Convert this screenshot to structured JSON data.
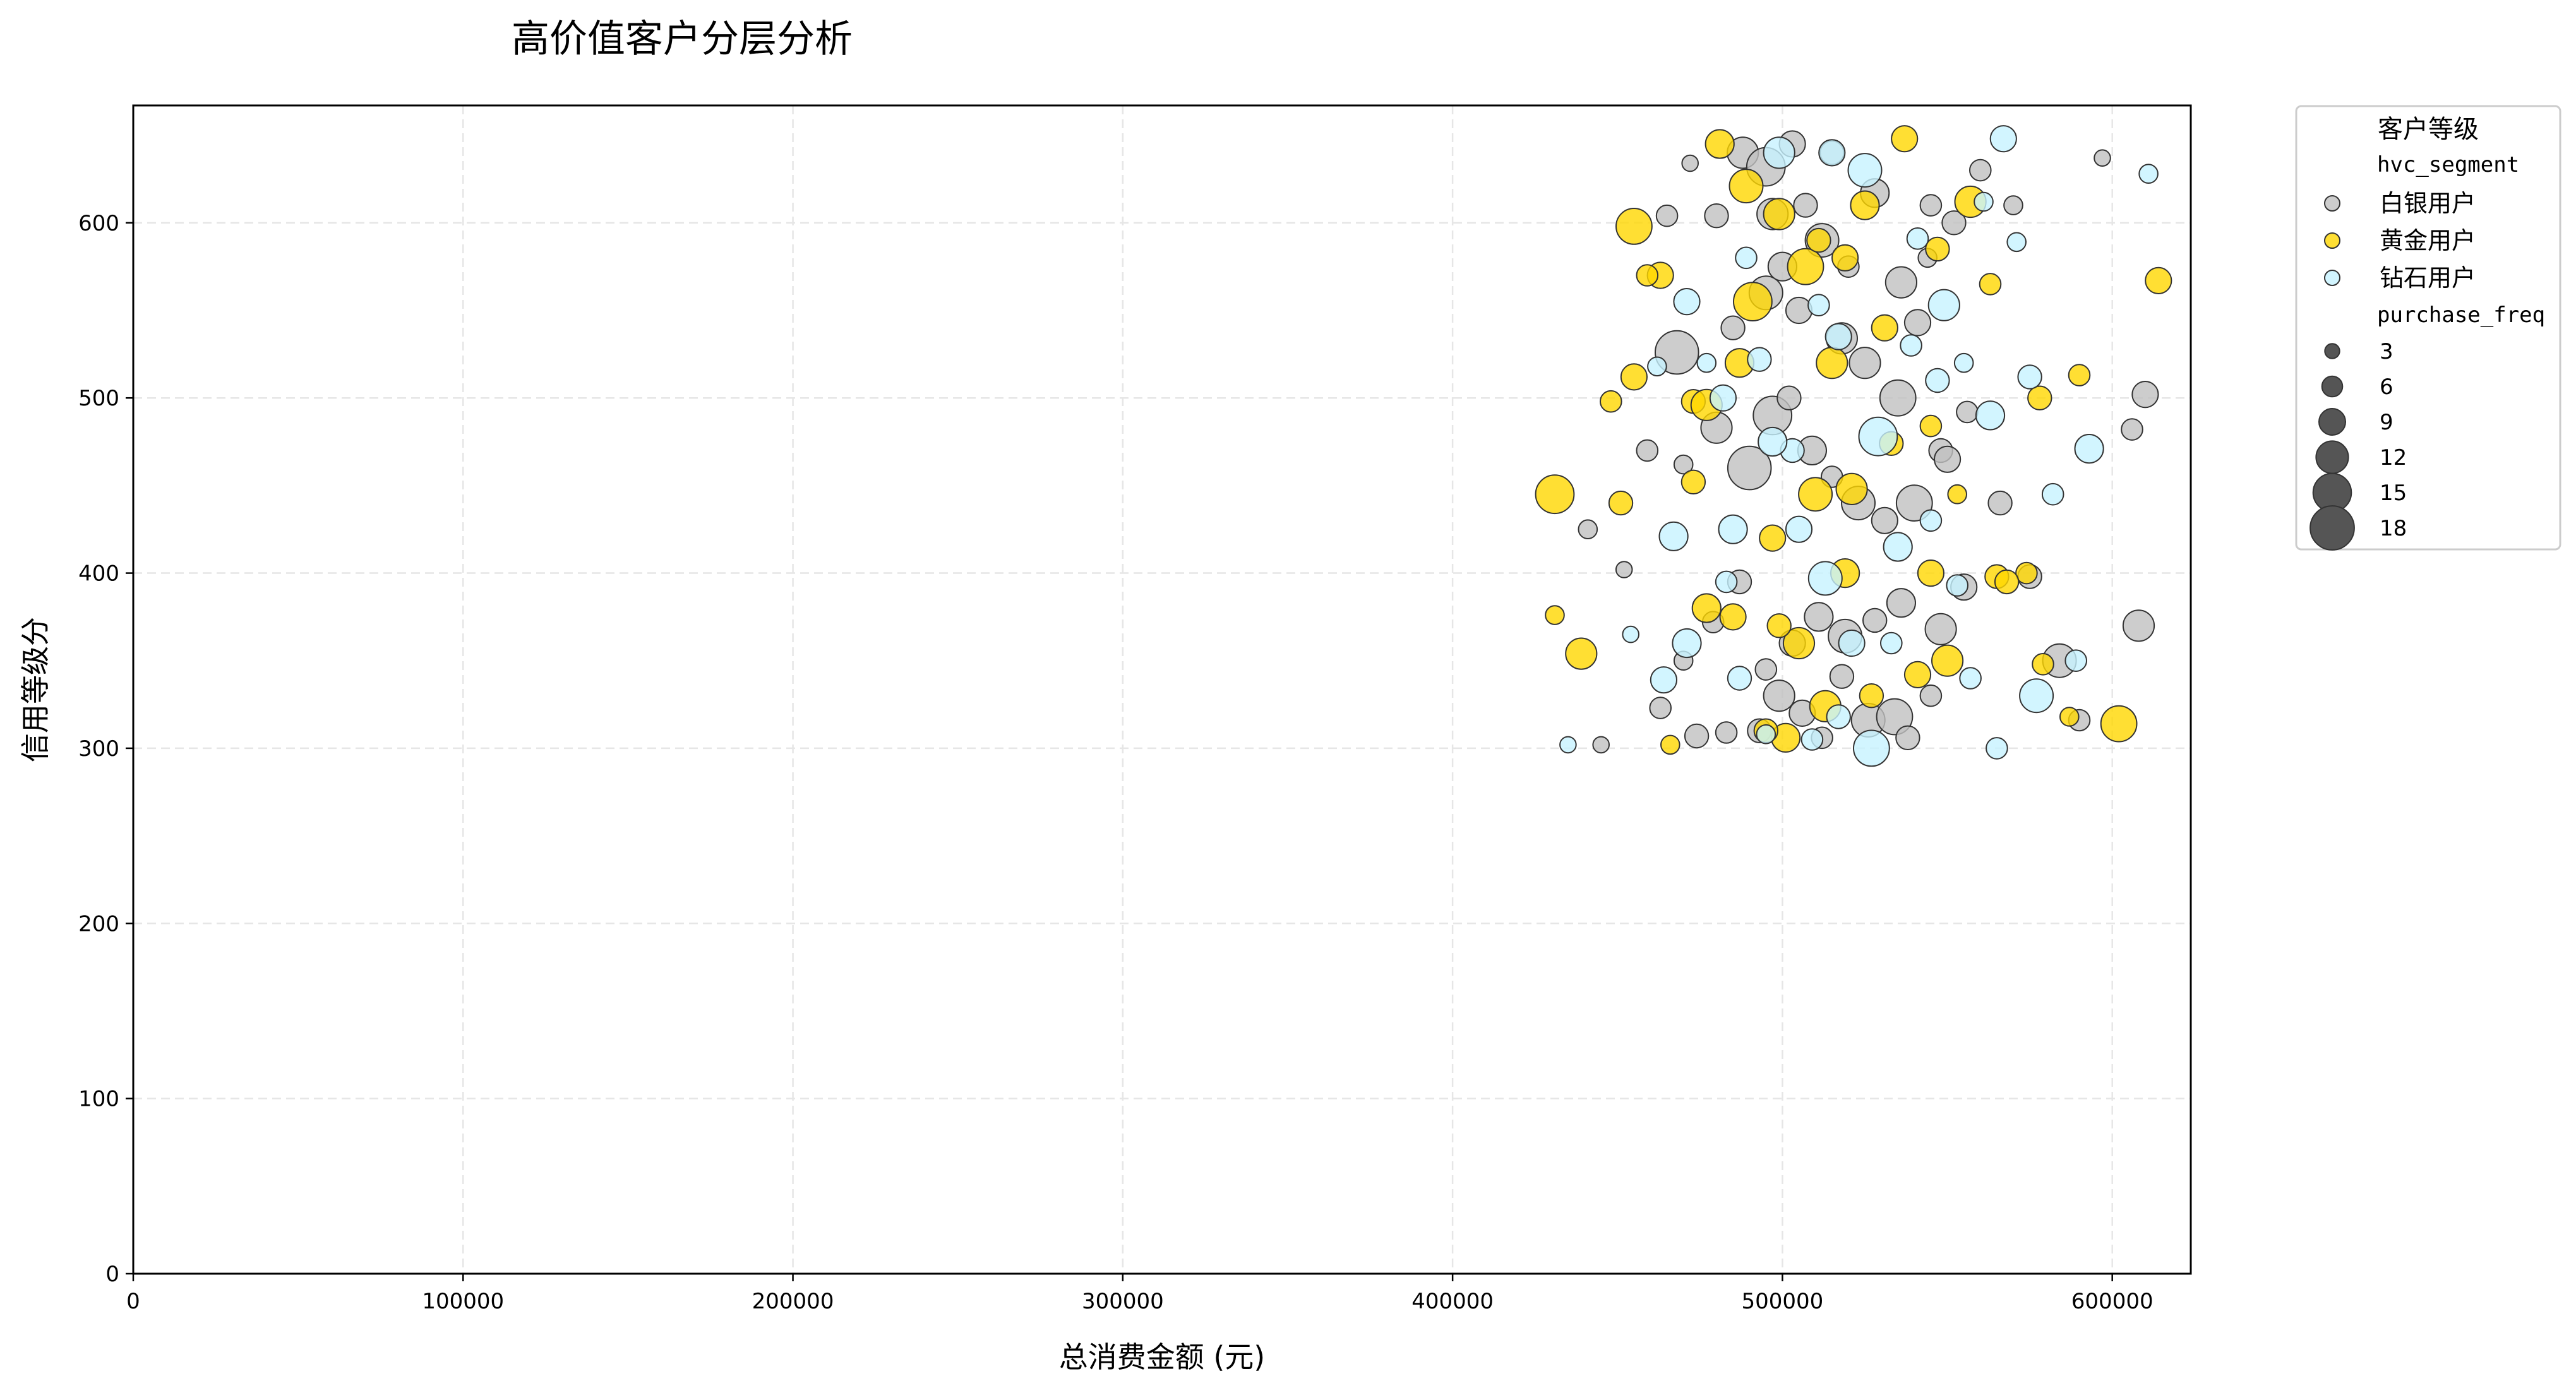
{
  "chart_data": {
    "type": "scatter",
    "title": "高价值客户分层分析",
    "xlabel": "总消费金额 (元)",
    "ylabel": "信用等级分",
    "xlim": [
      0,
      623800
    ],
    "ylim": [
      0,
      667
    ],
    "x_ticks": [
      0,
      100000,
      200000,
      300000,
      400000,
      500000,
      600000
    ],
    "x_tick_labels": [
      "0",
      "100000",
      "200000",
      "300000",
      "400000",
      "500000",
      "600000"
    ],
    "y_ticks": [
      0,
      100,
      200,
      300,
      400,
      500,
      600
    ],
    "y_tick_labels": [
      "0",
      "100",
      "200",
      "300",
      "400",
      "500",
      "600"
    ],
    "grid": true,
    "legend_position": "outside-top-right",
    "legend": {
      "title": "客户等级",
      "hue_title": "hvc_segment",
      "size_title": "purchase_freq",
      "size_entries": [
        3,
        6,
        9,
        12,
        15,
        18
      ]
    },
    "series": [
      {
        "name": "白银用户",
        "color": "#c0c0c0",
        "points": [
          [
            468000,
            526,
            14
          ],
          [
            472000,
            634,
            3
          ],
          [
            480000,
            604,
            6
          ],
          [
            488000,
            640,
            9
          ],
          [
            495000,
            632,
            12
          ],
          [
            503000,
            645,
            7
          ],
          [
            507000,
            610,
            6
          ],
          [
            512000,
            590,
            10
          ],
          [
            520000,
            575,
            5
          ],
          [
            528000,
            617,
            8
          ],
          [
            536000,
            566,
            9
          ],
          [
            544000,
            580,
            4
          ],
          [
            552000,
            600,
            6
          ],
          [
            560000,
            630,
            5
          ],
          [
            570000,
            610,
            4
          ],
          [
            597000,
            637,
            3
          ],
          [
            459000,
            470,
            5
          ],
          [
            470000,
            462,
            4
          ],
          [
            480000,
            483,
            9
          ],
          [
            490000,
            460,
            14
          ],
          [
            497000,
            490,
            12
          ],
          [
            502000,
            500,
            6
          ],
          [
            509000,
            470,
            8
          ],
          [
            515000,
            455,
            5
          ],
          [
            523000,
            440,
            10
          ],
          [
            531000,
            430,
            7
          ],
          [
            540000,
            440,
            11
          ],
          [
            548000,
            470,
            6
          ],
          [
            556000,
            492,
            5
          ],
          [
            566000,
            440,
            6
          ],
          [
            610000,
            502,
            7
          ],
          [
            606000,
            482,
            5
          ],
          [
            608000,
            370,
            9
          ],
          [
            590000,
            316,
            5
          ],
          [
            584000,
            350,
            10
          ],
          [
            463000,
            323,
            5
          ],
          [
            474000,
            307,
            6
          ],
          [
            483000,
            309,
            5
          ],
          [
            493000,
            310,
            6
          ],
          [
            499000,
            330,
            9
          ],
          [
            506000,
            320,
            7
          ],
          [
            512000,
            306,
            5
          ],
          [
            518000,
            341,
            6
          ],
          [
            526000,
            316,
            10
          ],
          [
            534000,
            318,
            11
          ],
          [
            538000,
            306,
            6
          ],
          [
            545000,
            330,
            5
          ],
          [
            470000,
            350,
            4
          ],
          [
            479000,
            372,
            5
          ],
          [
            487000,
            395,
            6
          ],
          [
            495000,
            345,
            5
          ],
          [
            503000,
            360,
            7
          ],
          [
            511000,
            375,
            8
          ],
          [
            519000,
            364,
            10
          ],
          [
            528000,
            373,
            6
          ],
          [
            536000,
            383,
            8
          ],
          [
            548000,
            368,
            9
          ],
          [
            555000,
            392,
            7
          ],
          [
            575000,
            398,
            6
          ],
          [
            452000,
            402,
            3
          ],
          [
            441000,
            425,
            4
          ],
          [
            465000,
            604,
            5
          ],
          [
            497000,
            605,
            9
          ],
          [
            515000,
            640,
            6
          ],
          [
            545000,
            610,
            5
          ],
          [
            485000,
            540,
            6
          ],
          [
            495000,
            560,
            10
          ],
          [
            505000,
            550,
            7
          ],
          [
            525000,
            520,
            9
          ],
          [
            535000,
            500,
            11
          ],
          [
            541000,
            543,
            7
          ],
          [
            500000,
            575,
            8
          ],
          [
            518000,
            534,
            9
          ],
          [
            550000,
            465,
            7
          ],
          [
            445000,
            302,
            3
          ]
        ]
      },
      {
        "name": "黄金用户",
        "color": "#ffd700",
        "points": [
          [
            431000,
            445,
            12
          ],
          [
            439000,
            354,
            9
          ],
          [
            451000,
            440,
            6
          ],
          [
            455000,
            598,
            11
          ],
          [
            463000,
            570,
            7
          ],
          [
            473000,
            498,
            6
          ],
          [
            477000,
            496,
            9
          ],
          [
            481000,
            645,
            8
          ],
          [
            489000,
            621,
            10
          ],
          [
            491000,
            555,
            12
          ],
          [
            499000,
            605,
            9
          ],
          [
            507000,
            575,
            11
          ],
          [
            511000,
            590,
            6
          ],
          [
            519000,
            580,
            7
          ],
          [
            525000,
            610,
            8
          ],
          [
            537000,
            648,
            7
          ],
          [
            547000,
            585,
            6
          ],
          [
            557000,
            612,
            9
          ],
          [
            563000,
            565,
            5
          ],
          [
            578000,
            500,
            6
          ],
          [
            590000,
            513,
            5
          ],
          [
            614000,
            567,
            7
          ],
          [
            602000,
            314,
            11
          ],
          [
            565000,
            398,
            6
          ],
          [
            574000,
            400,
            5
          ],
          [
            550000,
            350,
            9
          ],
          [
            541000,
            342,
            7
          ],
          [
            527000,
            330,
            6
          ],
          [
            519000,
            400,
            8
          ],
          [
            501000,
            306,
            8
          ],
          [
            495000,
            310,
            6
          ],
          [
            485000,
            375,
            7
          ],
          [
            477000,
            380,
            8
          ],
          [
            466000,
            302,
            4
          ],
          [
            431000,
            376,
            4
          ],
          [
            455000,
            512,
            7
          ],
          [
            448000,
            498,
            5
          ],
          [
            497000,
            420,
            7
          ],
          [
            505000,
            360,
            9
          ],
          [
            510000,
            445,
            10
          ],
          [
            521000,
            448,
            9
          ],
          [
            533000,
            474,
            6
          ],
          [
            545000,
            484,
            5
          ],
          [
            553000,
            445,
            4
          ],
          [
            568000,
            395,
            6
          ],
          [
            587000,
            318,
            4
          ],
          [
            579000,
            348,
            5
          ],
          [
            487000,
            520,
            8
          ],
          [
            515000,
            520,
            9
          ],
          [
            531000,
            540,
            7
          ],
          [
            473000,
            452,
            6
          ],
          [
            459000,
            570,
            5
          ],
          [
            545000,
            400,
            7
          ],
          [
            499000,
            370,
            6
          ],
          [
            513000,
            324,
            9
          ]
        ]
      },
      {
        "name": "钻石用户",
        "color": "#c7f3ff",
        "points": [
          [
            435000,
            302,
            3
          ],
          [
            454000,
            365,
            3
          ],
          [
            464000,
            339,
            7
          ],
          [
            467000,
            421,
            8
          ],
          [
            471000,
            555,
            7
          ],
          [
            477000,
            520,
            4
          ],
          [
            485000,
            425,
            8
          ],
          [
            489000,
            580,
            5
          ],
          [
            493000,
            522,
            6
          ],
          [
            499000,
            640,
            9
          ],
          [
            503000,
            470,
            6
          ],
          [
            511000,
            553,
            5
          ],
          [
            513000,
            397,
            10
          ],
          [
            517000,
            535,
            7
          ],
          [
            525000,
            630,
            10
          ],
          [
            529000,
            478,
            12
          ],
          [
            535000,
            415,
            8
          ],
          [
            541000,
            591,
            5
          ],
          [
            547000,
            510,
            6
          ],
          [
            553000,
            393,
            5
          ],
          [
            561000,
            612,
            4
          ],
          [
            567000,
            648,
            7
          ],
          [
            571000,
            589,
            4
          ],
          [
            575000,
            512,
            6
          ],
          [
            582000,
            445,
            5
          ],
          [
            593000,
            471,
            8
          ],
          [
            611000,
            628,
            4
          ],
          [
            589000,
            350,
            5
          ],
          [
            577000,
            330,
            10
          ],
          [
            565000,
            300,
            5
          ],
          [
            549000,
            553,
            9
          ],
          [
            527000,
            300,
            11
          ],
          [
            517000,
            318,
            6
          ],
          [
            509000,
            305,
            5
          ],
          [
            495000,
            308,
            4
          ],
          [
            487000,
            340,
            6
          ],
          [
            471000,
            360,
            8
          ],
          [
            462000,
            518,
            4
          ],
          [
            482000,
            500,
            7
          ],
          [
            497000,
            475,
            8
          ],
          [
            521000,
            360,
            7
          ],
          [
            533000,
            360,
            5
          ],
          [
            545000,
            430,
            5
          ],
          [
            557000,
            340,
            5
          ],
          [
            563000,
            490,
            8
          ],
          [
            505000,
            425,
            7
          ],
          [
            515000,
            640,
            7
          ],
          [
            539000,
            530,
            5
          ],
          [
            555000,
            520,
            4
          ],
          [
            483000,
            395,
            5
          ]
        ]
      }
    ]
  }
}
